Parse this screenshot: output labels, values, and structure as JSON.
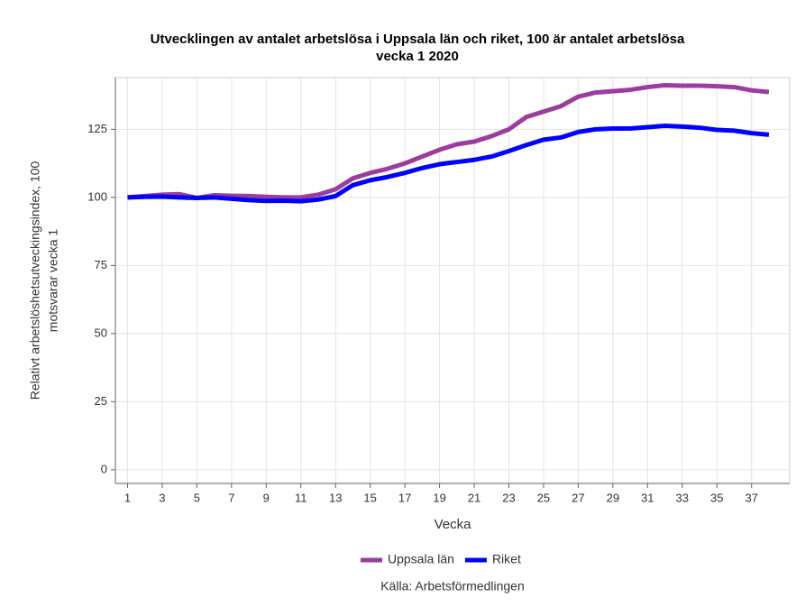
{
  "chart_data": {
    "type": "line",
    "title": [
      "Utvecklingen av antalet arbetslösa i Uppsala län och riket, 100 är antalet arbetslösa",
      "vecka 1 2020"
    ],
    "xlabel": "Vecka",
    "ylabel": [
      "Relativt arbetslöshetsutveckingsindex, 100",
      "motsvarar vecka 1"
    ],
    "source": "Källa: Arbetsförmedlingen",
    "x": [
      1,
      2,
      3,
      4,
      5,
      6,
      7,
      8,
      9,
      10,
      11,
      12,
      13,
      14,
      15,
      16,
      17,
      18,
      19,
      20,
      21,
      22,
      23,
      24,
      25,
      26,
      27,
      28,
      29,
      30,
      31,
      32,
      33,
      34,
      35,
      36,
      37,
      38
    ],
    "series": [
      {
        "name": "Uppsala län",
        "color": "#9b3c9e",
        "values": [
          100,
          100.5,
          101,
          101.2,
          99.8,
          100.8,
          100.6,
          100.5,
          100.2,
          100,
          100,
          101,
          103,
          107,
          109,
          110.5,
          112.5,
          115,
          117.5,
          119.5,
          120.5,
          122.5,
          125,
          129.5,
          131.5,
          133.5,
          137,
          138.5,
          139,
          139.5,
          140.5,
          141.2,
          141,
          141,
          140.8,
          140.5,
          139.3,
          138.7
        ]
      },
      {
        "name": "Riket",
        "color": "#0000ff",
        "values": [
          100,
          100.2,
          100.3,
          100,
          99.8,
          100,
          99.5,
          99,
          98.7,
          98.8,
          98.6,
          99.2,
          100.5,
          104.5,
          106.3,
          107.5,
          109,
          110.8,
          112.2,
          113,
          113.8,
          115,
          117,
          119.2,
          121.2,
          122,
          124,
          125,
          125.3,
          125.3,
          125.8,
          126.3,
          126,
          125.6,
          124.8,
          124.5,
          123.6,
          123
        ]
      }
    ],
    "xlim": [
      0.3,
      39.2
    ],
    "xticks": [
      1,
      3,
      5,
      7,
      9,
      11,
      13,
      15,
      17,
      19,
      21,
      23,
      25,
      27,
      29,
      31,
      33,
      35,
      37
    ],
    "ylim": [
      -5,
      144
    ],
    "yticks": [
      0,
      25,
      50,
      75,
      100,
      125
    ],
    "grid": true,
    "legend": "bottom"
  }
}
